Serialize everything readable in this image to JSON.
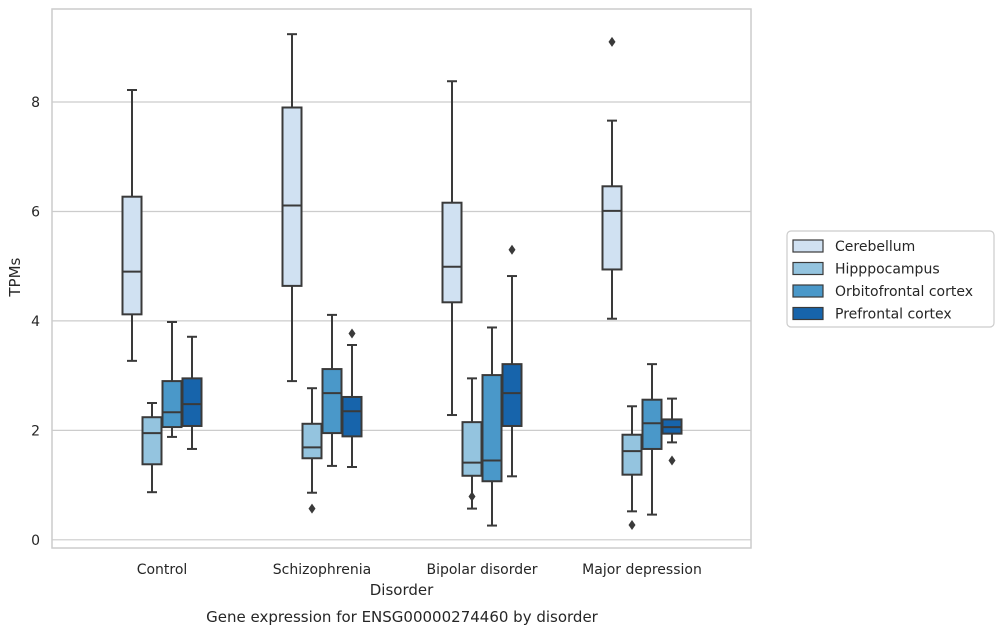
{
  "chart_data": {
    "type": "box",
    "title": "",
    "caption": "Gene expression for ENSG00000274460 by disorder",
    "xlabel": "Disorder",
    "ylabel": "TPMs",
    "ylim": [
      -0.15,
      9.7
    ],
    "yticks": [
      0,
      2,
      4,
      6,
      8
    ],
    "grid": "horizontal",
    "legend_position": "right",
    "categories": [
      "Control",
      "Schizophrenia",
      "Bipolar disorder",
      "Major depression"
    ],
    "series": [
      {
        "name": "Cerebellum",
        "color": "#d0e1f2",
        "boxes": [
          {
            "whisker_low": 3.27,
            "q1": 4.12,
            "median": 4.9,
            "q3": 6.27,
            "whisker_high": 8.22,
            "outliers": []
          },
          {
            "whisker_low": 2.9,
            "q1": 4.64,
            "median": 6.11,
            "q3": 7.9,
            "whisker_high": 9.24,
            "outliers": []
          },
          {
            "whisker_low": 2.28,
            "q1": 4.34,
            "median": 4.99,
            "q3": 6.16,
            "whisker_high": 8.38,
            "outliers": []
          },
          {
            "whisker_low": 4.04,
            "q1": 4.94,
            "median": 6.01,
            "q3": 6.46,
            "whisker_high": 7.66,
            "outliers": [
              9.1
            ]
          }
        ]
      },
      {
        "name": "Hipppocampus",
        "color": "#94c4df",
        "boxes": [
          {
            "whisker_low": 0.87,
            "q1": 1.38,
            "median": 1.95,
            "q3": 2.24,
            "whisker_high": 2.5,
            "outliers": []
          },
          {
            "whisker_low": 0.86,
            "q1": 1.49,
            "median": 1.69,
            "q3": 2.12,
            "whisker_high": 2.77,
            "outliers": [
              0.57
            ]
          },
          {
            "whisker_low": 0.57,
            "q1": 1.17,
            "median": 1.41,
            "q3": 2.15,
            "whisker_high": 2.95,
            "outliers": [
              0.79
            ]
          },
          {
            "whisker_low": 0.52,
            "q1": 1.19,
            "median": 1.62,
            "q3": 1.92,
            "whisker_high": 2.44,
            "outliers": [
              0.27
            ]
          }
        ]
      },
      {
        "name": "Orbitofrontal cortex",
        "color": "#4a98c9",
        "boxes": [
          {
            "whisker_low": 1.88,
            "q1": 2.06,
            "median": 2.33,
            "q3": 2.9,
            "whisker_high": 3.98,
            "outliers": []
          },
          {
            "whisker_low": 1.35,
            "q1": 1.95,
            "median": 2.68,
            "q3": 3.12,
            "whisker_high": 4.11,
            "outliers": []
          },
          {
            "whisker_low": 0.26,
            "q1": 1.07,
            "median": 1.45,
            "q3": 3.01,
            "whisker_high": 3.88,
            "outliers": []
          },
          {
            "whisker_low": 0.46,
            "q1": 1.66,
            "median": 2.13,
            "q3": 2.56,
            "whisker_high": 3.21,
            "outliers": []
          }
        ]
      },
      {
        "name": "Prefrontal cortex",
        "color": "#1764ab",
        "boxes": [
          {
            "whisker_low": 1.66,
            "q1": 2.08,
            "median": 2.48,
            "q3": 2.95,
            "whisker_high": 3.71,
            "outliers": []
          },
          {
            "whisker_low": 1.33,
            "q1": 1.89,
            "median": 2.35,
            "q3": 2.61,
            "whisker_high": 3.56,
            "outliers": [
              3.77
            ]
          },
          {
            "whisker_low": 1.16,
            "q1": 2.08,
            "median": 2.68,
            "q3": 3.21,
            "whisker_high": 4.82,
            "outliers": [
              5.3
            ]
          },
          {
            "whisker_low": 1.78,
            "q1": 1.94,
            "median": 2.06,
            "q3": 2.2,
            "whisker_high": 2.58,
            "outliers": [
              1.45
            ]
          }
        ]
      }
    ]
  }
}
